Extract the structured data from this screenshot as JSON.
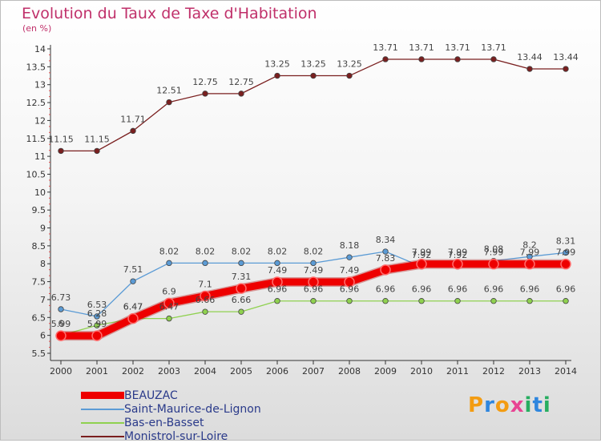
{
  "title": "Evolution du Taux de Taxe d'Habitation",
  "unit_label": "(en %)",
  "logo": {
    "letters": [
      "P",
      "r",
      "o",
      "x",
      "i",
      "t",
      "i"
    ],
    "colors": [
      "#f39c12",
      "#2e86de",
      "#f39c12",
      "#e84393",
      "#27ae60",
      "#2e86de",
      "#27ae60"
    ]
  },
  "chart_data": {
    "type": "line",
    "title": "Evolution du Taux de Taxe d'Habitation",
    "ylabel": "(en %)",
    "xlabel": "",
    "x": [
      "2000",
      "2001",
      "2002",
      "2003",
      "2004",
      "2005",
      "2006",
      "2007",
      "2008",
      "2009",
      "2010",
      "2011",
      "2012",
      "2013",
      "2014"
    ],
    "ylim": [
      5.5,
      14
    ],
    "yticks": [
      "5.5",
      "6",
      "6.5",
      "7",
      "7.5",
      "8",
      "8.5",
      "9",
      "9.5",
      "10",
      "10.5",
      "11",
      "11.5",
      "12",
      "12.5",
      "13",
      "13.5",
      "14"
    ],
    "grid": false,
    "legend": "bottom-left",
    "series": [
      {
        "name": "BEAUZAC",
        "color": "#ee0000",
        "values": [
          5.99,
          5.99,
          6.47,
          6.9,
          7.1,
          7.31,
          7.49,
          7.49,
          7.49,
          7.83,
          7.99,
          7.99,
          7.99,
          7.99,
          7.99
        ],
        "labels": [
          "5.99",
          "5.99",
          "6.47",
          "6.9",
          "7.1",
          "7.31",
          "7.49",
          "7.49",
          "7.49",
          "7.83",
          "7.99",
          "7.99",
          "7.99",
          "7.99",
          "7.99"
        ]
      },
      {
        "name": "Saint-Maurice-de-Lignon",
        "color": "#5b9bd5",
        "values": [
          6.73,
          6.53,
          7.51,
          8.02,
          8.02,
          8.02,
          8.02,
          8.02,
          8.18,
          8.34,
          7.92,
          7.92,
          8.08,
          8.2,
          8.31
        ],
        "labels": [
          "6.73",
          "6.53",
          "7.51",
          "8.02",
          "8.02",
          "8.02",
          "8.02",
          "8.02",
          "8.18",
          "8.34",
          "7.92",
          "7.92",
          "8.08",
          "8.2",
          "8.31"
        ]
      },
      {
        "name": "Bas-en-Basset",
        "color": "#8fd14f",
        "values": [
          6.0,
          6.28,
          6.47,
          6.47,
          6.66,
          6.66,
          6.96,
          6.96,
          6.96,
          6.96,
          6.96,
          6.96,
          6.96,
          6.96,
          6.96
        ],
        "labels": [
          "6",
          "6.28",
          "6.47",
          "6.47",
          "6.66",
          "6.66",
          "6.96",
          "6.96",
          "6.96",
          "6.96",
          "6.96",
          "6.96",
          "6.96",
          "6.96",
          "6.96"
        ]
      },
      {
        "name": "Monistrol-sur-Loire",
        "color": "#7a1f1f",
        "values": [
          11.15,
          11.15,
          11.71,
          12.51,
          12.75,
          12.75,
          13.25,
          13.25,
          13.25,
          13.71,
          13.71,
          13.71,
          13.71,
          13.44,
          13.44
        ],
        "labels": [
          "11.15",
          "11.15",
          "11.71",
          "12.51",
          "12.75",
          "12.75",
          "13.25",
          "13.25",
          "13.25",
          "13.71",
          "13.71",
          "13.71",
          "13.71",
          "13.44",
          "13.44"
        ]
      }
    ]
  }
}
